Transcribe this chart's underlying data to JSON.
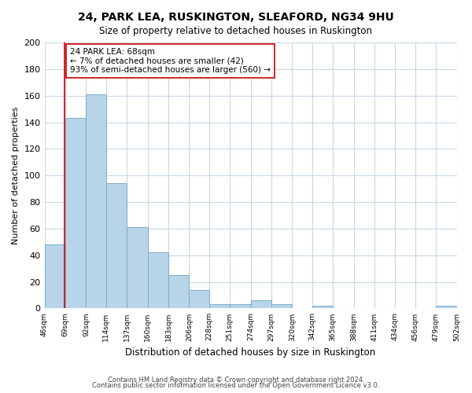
{
  "title": "24, PARK LEA, RUSKINGTON, SLEAFORD, NG34 9HU",
  "subtitle": "Size of property relative to detached houses in Ruskington",
  "xlabel": "Distribution of detached houses by size in Ruskington",
  "ylabel": "Number of detached properties",
  "bin_edges": [
    46,
    69,
    92,
    114,
    137,
    160,
    183,
    206,
    228,
    251,
    274,
    297,
    320,
    342,
    365,
    388,
    411,
    434,
    456,
    479,
    502
  ],
  "bar_heights": [
    48,
    143,
    161,
    94,
    61,
    42,
    25,
    14,
    3,
    3,
    6,
    3,
    0,
    2,
    0,
    0,
    0,
    0,
    0,
    2
  ],
  "bar_color": "#b8d4e8",
  "bar_edgecolor": "#7aaec8",
  "property_size": 68,
  "property_line_color": "#cc0000",
  "annotation_text": "24 PARK LEA: 68sqm\n← 7% of detached houses are smaller (42)\n93% of semi-detached houses are larger (560) →",
  "annotation_box_color": "#ffffff",
  "annotation_box_edgecolor": "#cc0000",
  "ylim": [
    0,
    200
  ],
  "yticks": [
    0,
    20,
    40,
    60,
    80,
    100,
    120,
    140,
    160,
    180,
    200
  ],
  "tick_labels": [
    "46sqm",
    "69sqm",
    "92sqm",
    "114sqm",
    "137sqm",
    "160sqm",
    "183sqm",
    "206sqm",
    "228sqm",
    "251sqm",
    "274sqm",
    "297sqm",
    "320sqm",
    "342sqm",
    "365sqm",
    "388sqm",
    "411sqm",
    "434sqm",
    "456sqm",
    "479sqm",
    "502sqm"
  ],
  "footer_line1": "Contains HM Land Registry data © Crown copyright and database right 2024.",
  "footer_line2": "Contains public sector information licensed under the Open Government Licence v3.0.",
  "background_color": "#ffffff",
  "grid_color": "#c8d8e8"
}
